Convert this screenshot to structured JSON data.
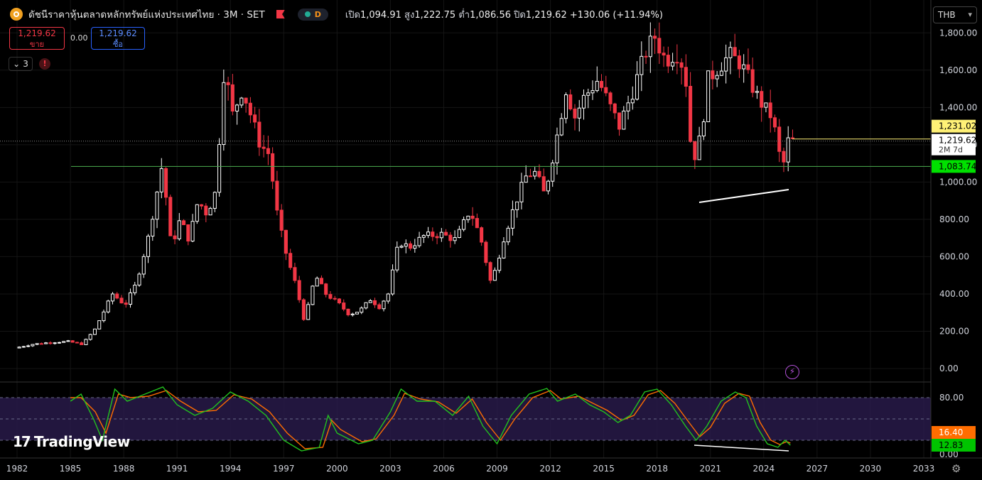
{
  "header": {
    "title": "ดัชนีราคาหุ้นตลาดหลักทรัพย์แห่งประเทศไทย · 3M · SET",
    "data_source_badge": "D",
    "ohlc": {
      "open_label": "เปิด",
      "open": "1,094.91",
      "high_label": "สูง",
      "high": "1,222.75",
      "low_label": "ต่ำ",
      "low": "1,086.56",
      "close_label": "ปิด",
      "close": "1,219.62",
      "change": "+130.06 (+11.94%)"
    }
  },
  "trade": {
    "sell_price": "1,219.62",
    "sell_label": "ขาย",
    "spread": "0.00",
    "buy_price": "1,219.62",
    "buy_label": "ซื้อ"
  },
  "indicators": {
    "count": "3",
    "collapse_icon": "chevron-down-icon",
    "warning": "!"
  },
  "currency": "THB",
  "branding": {
    "name": "TradingView"
  },
  "colors": {
    "up": "#ffffff",
    "down": "#f23645",
    "support": "#4caf50",
    "rsi_fast": "#22c31e",
    "rsi_slow": "#ff6d00",
    "band": "#2a1b4e",
    "last_price": "#fff176"
  },
  "chart_data": {
    "type": "candlestick",
    "price_axis": {
      "ticks": [
        "0.00",
        "200.00",
        "400.00",
        "600.00",
        "800.00",
        "1,000.00",
        "1,200.00",
        "1,400.00",
        "1,600.00",
        "1,800.00"
      ],
      "ylim": [
        0,
        1900
      ]
    },
    "time_axis": {
      "ticks": [
        "1982",
        "1985",
        "1988",
        "1991",
        "1994",
        "1997",
        "2000",
        "2003",
        "2006",
        "2009",
        "2012",
        "2015",
        "2018",
        "2021",
        "2024",
        "2027",
        "2030",
        "2033"
      ]
    },
    "price_labels": {
      "high_line": "1,231.02",
      "last": "1,219.62",
      "countdown": "2M 7d",
      "support": "1,083.74"
    },
    "support_level": 1083.74,
    "last_price": 1219.62,
    "high_line": 1231.02,
    "price_path": [
      [
        1982.0,
        110
      ],
      [
        1983.0,
        130
      ],
      [
        1984.0,
        140
      ],
      [
        1985.0,
        145
      ],
      [
        1985.8,
        130
      ],
      [
        1986.5,
        210
      ],
      [
        1987.5,
        400
      ],
      [
        1988.2,
        340
      ],
      [
        1988.8,
        450
      ],
      [
        1989.5,
        700
      ],
      [
        1990.3,
        1100
      ],
      [
        1990.8,
        650
      ],
      [
        1991.3,
        800
      ],
      [
        1991.8,
        690
      ],
      [
        1992.3,
        900
      ],
      [
        1992.8,
        830
      ],
      [
        1993.3,
        950
      ],
      [
        1993.8,
        1650
      ],
      [
        1994.2,
        1350
      ],
      [
        1994.8,
        1500
      ],
      [
        1995.3,
        1350
      ],
      [
        1995.8,
        1200
      ],
      [
        1996.3,
        1150
      ],
      [
        1996.8,
        800
      ],
      [
        1997.3,
        600
      ],
      [
        1997.8,
        450
      ],
      [
        1998.3,
        250
      ],
      [
        1998.9,
        500
      ],
      [
        1999.5,
        400
      ],
      [
        2000.2,
        350
      ],
      [
        2000.8,
        290
      ],
      [
        2001.4,
        310
      ],
      [
        2002.0,
        370
      ],
      [
        2002.5,
        330
      ],
      [
        2003.0,
        400
      ],
      [
        2003.6,
        680
      ],
      [
        2004.2,
        650
      ],
      [
        2005.0,
        710
      ],
      [
        2006.0,
        720
      ],
      [
        2006.8,
        690
      ],
      [
        2007.6,
        850
      ],
      [
        2008.2,
        700
      ],
      [
        2008.8,
        450
      ],
      [
        2009.5,
        700
      ],
      [
        2010.2,
        900
      ],
      [
        2010.8,
        1040
      ],
      [
        2011.3,
        1050
      ],
      [
        2011.8,
        930
      ],
      [
        2012.4,
        1200
      ],
      [
        2013.0,
        1500
      ],
      [
        2013.5,
        1350
      ],
      [
        2014.0,
        1450
      ],
      [
        2014.8,
        1550
      ],
      [
        2015.5,
        1400
      ],
      [
        2016.0,
        1300
      ],
      [
        2016.8,
        1500
      ],
      [
        2017.5,
        1700
      ],
      [
        2018.0,
        1780
      ],
      [
        2018.6,
        1650
      ],
      [
        2019.2,
        1700
      ],
      [
        2019.7,
        1600
      ],
      [
        2020.1,
        1100
      ],
      [
        2020.6,
        1250
      ],
      [
        2021.0,
        1550
      ],
      [
        2021.6,
        1620
      ],
      [
        2022.2,
        1680
      ],
      [
        2022.8,
        1640
      ],
      [
        2023.3,
        1550
      ],
      [
        2023.8,
        1450
      ],
      [
        2024.3,
        1380
      ],
      [
        2024.6,
        1350
      ],
      [
        2025.0,
        1150
      ],
      [
        2025.3,
        1094
      ],
      [
        2025.5,
        1219
      ]
    ],
    "rsi": {
      "ticks": [
        "80.00",
        "0.00"
      ],
      "labels": {
        "slow": "16.40",
        "fast": "12.83"
      },
      "ylim": [
        0,
        100
      ],
      "upper_band": 80,
      "lower_band": 20,
      "fast": [
        [
          1985.0,
          75
        ],
        [
          1985.6,
          85
        ],
        [
          1986.3,
          50
        ],
        [
          1986.8,
          20
        ],
        [
          1987.5,
          92
        ],
        [
          1988.2,
          75
        ],
        [
          1989.2,
          85
        ],
        [
          1990.2,
          95
        ],
        [
          1991.0,
          70
        ],
        [
          1992.0,
          55
        ],
        [
          1993.0,
          65
        ],
        [
          1994.0,
          88
        ],
        [
          1995.0,
          75
        ],
        [
          1996.0,
          55
        ],
        [
          1997.0,
          20
        ],
        [
          1998.0,
          5
        ],
        [
          1999.0,
          10
        ],
        [
          1999.5,
          55
        ],
        [
          2000.0,
          30
        ],
        [
          2001.2,
          15
        ],
        [
          2002.0,
          20
        ],
        [
          2003.0,
          60
        ],
        [
          2003.6,
          92
        ],
        [
          2004.5,
          75
        ],
        [
          2005.5,
          75
        ],
        [
          2006.5,
          55
        ],
        [
          2007.4,
          82
        ],
        [
          2008.2,
          40
        ],
        [
          2009.0,
          15
        ],
        [
          2009.8,
          55
        ],
        [
          2010.8,
          85
        ],
        [
          2011.8,
          93
        ],
        [
          2012.4,
          75
        ],
        [
          2013.4,
          85
        ],
        [
          2014.2,
          70
        ],
        [
          2015.0,
          60
        ],
        [
          2015.8,
          45
        ],
        [
          2016.5,
          55
        ],
        [
          2017.3,
          88
        ],
        [
          2018.0,
          92
        ],
        [
          2018.8,
          70
        ],
        [
          2019.6,
          40
        ],
        [
          2020.2,
          20
        ],
        [
          2020.8,
          40
        ],
        [
          2021.6,
          75
        ],
        [
          2022.4,
          88
        ],
        [
          2023.0,
          80
        ],
        [
          2023.6,
          40
        ],
        [
          2024.2,
          15
        ],
        [
          2024.8,
          10
        ],
        [
          2025.2,
          20
        ],
        [
          2025.5,
          13
        ]
      ],
      "slow": [
        [
          1985.0,
          80
        ],
        [
          1985.6,
          80
        ],
        [
          1986.4,
          60
        ],
        [
          1987.0,
          30
        ],
        [
          1987.7,
          85
        ],
        [
          1988.4,
          80
        ],
        [
          1989.4,
          82
        ],
        [
          1990.4,
          90
        ],
        [
          1991.2,
          75
        ],
        [
          1992.2,
          60
        ],
        [
          1993.2,
          62
        ],
        [
          1994.2,
          84
        ],
        [
          1995.2,
          78
        ],
        [
          1996.2,
          60
        ],
        [
          1997.2,
          30
        ],
        [
          1998.2,
          8
        ],
        [
          1999.2,
          10
        ],
        [
          1999.7,
          48
        ],
        [
          2000.2,
          35
        ],
        [
          2001.4,
          18
        ],
        [
          2002.2,
          22
        ],
        [
          2003.2,
          55
        ],
        [
          2003.8,
          86
        ],
        [
          2004.7,
          78
        ],
        [
          2005.7,
          74
        ],
        [
          2006.7,
          58
        ],
        [
          2007.6,
          78
        ],
        [
          2008.4,
          45
        ],
        [
          2009.2,
          20
        ],
        [
          2010.0,
          50
        ],
        [
          2011.0,
          80
        ],
        [
          2012.0,
          90
        ],
        [
          2012.6,
          78
        ],
        [
          2013.6,
          82
        ],
        [
          2014.4,
          72
        ],
        [
          2015.2,
          62
        ],
        [
          2016.0,
          48
        ],
        [
          2016.7,
          55
        ],
        [
          2017.5,
          84
        ],
        [
          2018.2,
          90
        ],
        [
          2019.0,
          72
        ],
        [
          2019.8,
          45
        ],
        [
          2020.4,
          25
        ],
        [
          2021.0,
          38
        ],
        [
          2021.8,
          72
        ],
        [
          2022.6,
          86
        ],
        [
          2023.2,
          82
        ],
        [
          2023.8,
          45
        ],
        [
          2024.4,
          20
        ],
        [
          2024.9,
          14
        ],
        [
          2025.3,
          18
        ],
        [
          2025.5,
          16
        ]
      ]
    }
  }
}
